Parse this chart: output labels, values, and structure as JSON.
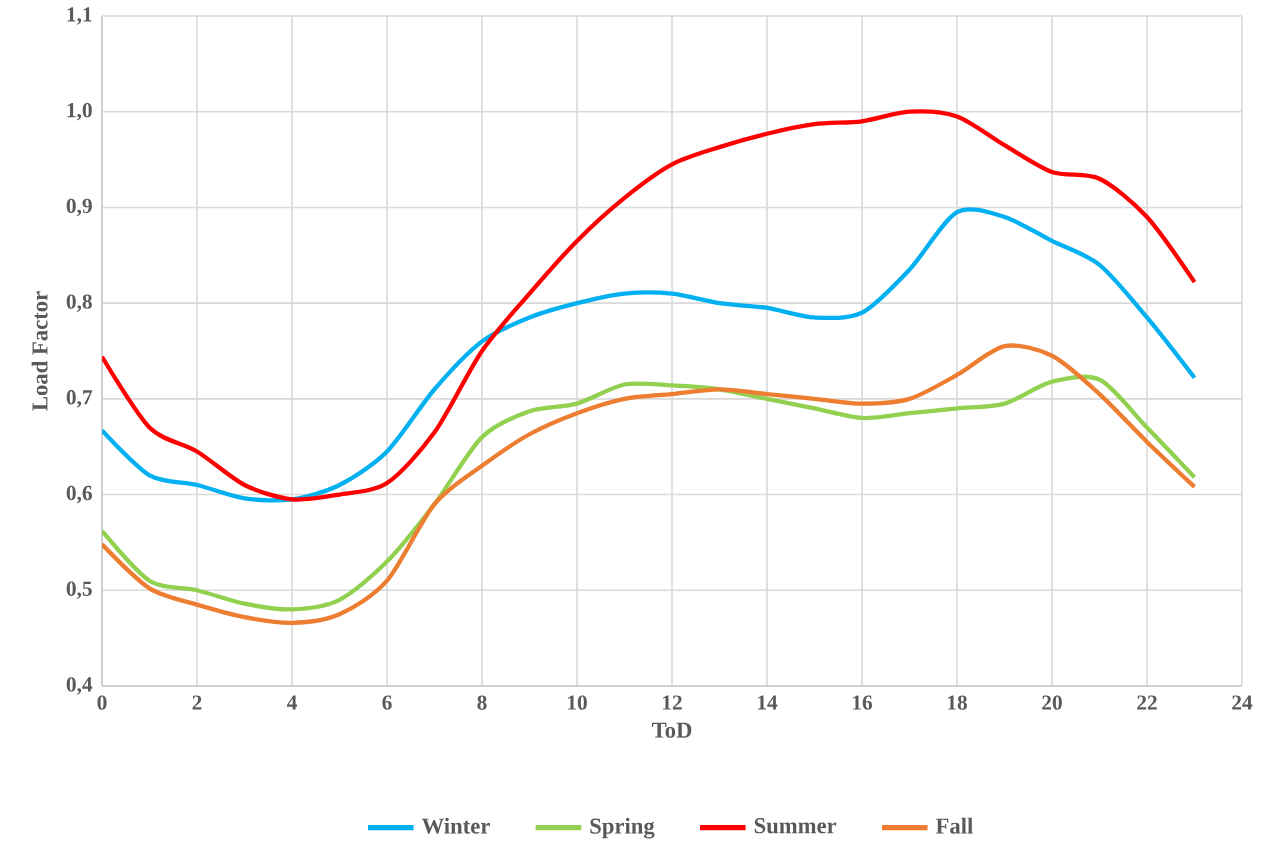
{
  "chart_data": {
    "type": "line",
    "xlabel": "ToD",
    "ylabel": "Load Factor",
    "x": [
      0,
      1,
      2,
      3,
      4,
      5,
      6,
      7,
      8,
      9,
      10,
      11,
      12,
      13,
      14,
      15,
      16,
      17,
      18,
      19,
      20,
      21,
      22,
      23
    ],
    "series": [
      {
        "name": "Winter",
        "color": "#00b0f0",
        "values": [
          0.667,
          0.62,
          0.61,
          0.596,
          0.595,
          0.61,
          0.645,
          0.71,
          0.76,
          0.785,
          0.8,
          0.81,
          0.81,
          0.8,
          0.795,
          0.785,
          0.79,
          0.835,
          0.895,
          0.89,
          0.865,
          0.84,
          0.785,
          0.722
        ]
      },
      {
        "name": "Spring",
        "color": "#92d050",
        "values": [
          0.562,
          0.51,
          0.5,
          0.486,
          0.48,
          0.49,
          0.53,
          0.59,
          0.66,
          0.687,
          0.695,
          0.715,
          0.714,
          0.71,
          0.7,
          0.69,
          0.68,
          0.685,
          0.69,
          0.695,
          0.718,
          0.72,
          0.67,
          0.618
        ]
      },
      {
        "name": "Summer",
        "color": "#ff0000",
        "values": [
          0.744,
          0.67,
          0.645,
          0.61,
          0.595,
          0.6,
          0.612,
          0.665,
          0.75,
          0.81,
          0.865,
          0.91,
          0.945,
          0.963,
          0.977,
          0.987,
          0.99,
          1.0,
          0.995,
          0.965,
          0.937,
          0.93,
          0.89,
          0.822
        ]
      },
      {
        "name": "Fall",
        "color": "#ed7d31",
        "values": [
          0.548,
          0.502,
          0.485,
          0.472,
          0.466,
          0.475,
          0.51,
          0.59,
          0.63,
          0.663,
          0.685,
          0.7,
          0.705,
          0.71,
          0.705,
          0.7,
          0.695,
          0.7,
          0.725,
          0.755,
          0.745,
          0.705,
          0.655,
          0.608
        ]
      }
    ],
    "xlim": [
      0,
      24
    ],
    "xticks": [
      0,
      2,
      4,
      6,
      8,
      10,
      12,
      14,
      16,
      18,
      20,
      22,
      24
    ],
    "ylim": [
      0.4,
      1.1
    ],
    "yticks": [
      {
        "value": 0.4,
        "label": "0,4"
      },
      {
        "value": 0.5,
        "label": "0,5"
      },
      {
        "value": 0.6,
        "label": "0,6"
      },
      {
        "value": 0.7,
        "label": "0,7"
      },
      {
        "value": 0.8,
        "label": "0,8"
      },
      {
        "value": 0.9,
        "label": "0,9"
      },
      {
        "value": 1.0,
        "label": "1,0"
      },
      {
        "value": 1.1,
        "label": "1,1"
      }
    ],
    "grid": true,
    "legend": "bottom",
    "marker": "none",
    "line_style": "solid"
  }
}
